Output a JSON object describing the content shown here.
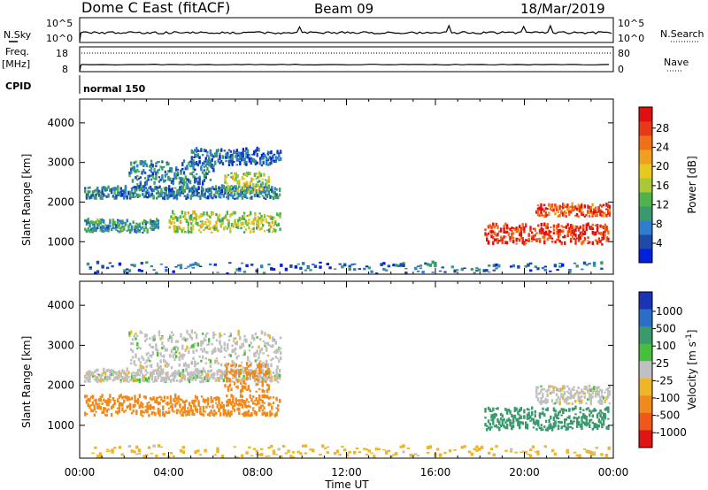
{
  "header": {
    "station": "Dome C East (fitACF)",
    "beam": "Beam 09",
    "date": "18/Mar/2019"
  },
  "top_panels": {
    "nsky": {
      "label": "N.Sky",
      "ticks": [
        "10^5",
        "10^0"
      ],
      "right_ticks": [
        "10^5",
        "10^0"
      ],
      "right_label": "N.Search"
    },
    "freq": {
      "label_line1": "Freq.",
      "label_line2": "[MHz]",
      "ticks": [
        "18",
        "8"
      ],
      "right_ticks": [
        "80",
        "0"
      ],
      "right_label": "Nave"
    },
    "cpid": {
      "label": "CPID",
      "mode": "normal 150"
    }
  },
  "x_axis": {
    "label": "Time UT",
    "ticks": [
      "00:00",
      "04:00",
      "08:00",
      "12:00",
      "16:00",
      "20:00",
      "00:00"
    ]
  },
  "y_axis": {
    "label": "Slant Range [km]",
    "ticks": [
      "1000",
      "2000",
      "3000",
      "4000"
    ]
  },
  "power_colorbar": {
    "label": "Power [dB]",
    "ticks": [
      "4",
      "8",
      "12",
      "16",
      "20",
      "24",
      "28"
    ],
    "colors": [
      "#0020e0",
      "#1e4aa8",
      "#2e7ed0",
      "#3a9a6e",
      "#4cb44a",
      "#a8c838",
      "#e8c81e",
      "#f0a01e",
      "#f07018",
      "#e83818",
      "#e01010"
    ]
  },
  "velocity_colorbar": {
    "label": "Velocity [m s^-1]",
    "ticks": [
      "1000",
      "500",
      "100",
      "25",
      "-25",
      "-100",
      "-500",
      "-1000"
    ],
    "colors": [
      "#1a34b8",
      "#2a6ec8",
      "#3a9a6e",
      "#44c03a",
      "#c0c0c0",
      "#f0b428",
      "#f08a1c",
      "#f05818",
      "#e01414"
    ]
  },
  "chart_data": [
    {
      "type": "heatmap",
      "title": "",
      "quantity": "Power",
      "units": "dB",
      "xlabel": "Time UT",
      "ylabel": "Slant Range [km]",
      "xlim": [
        "00:00",
        "24:00"
      ],
      "ylim": [
        180,
        4600
      ],
      "bands": [
        {
          "t_start": 0.2,
          "t_end": 9.0,
          "range_start": 2050,
          "range_end": 2350,
          "value": 8
        },
        {
          "t_start": 2.2,
          "t_end": 6.0,
          "range_start": 2400,
          "range_end": 3000,
          "value": 8
        },
        {
          "t_start": 5.0,
          "t_end": 9.0,
          "range_start": 2900,
          "range_end": 3300,
          "value": 6
        },
        {
          "t_start": 6.5,
          "t_end": 8.5,
          "range_start": 2200,
          "range_end": 2700,
          "value": 16
        },
        {
          "t_start": 0.2,
          "t_end": 3.5,
          "range_start": 1200,
          "range_end": 1500,
          "value": 10
        },
        {
          "t_start": 4.0,
          "t_end": 9.0,
          "range_start": 1200,
          "range_end": 1700,
          "value": 16
        },
        {
          "t_start": 18.2,
          "t_end": 23.8,
          "range_start": 900,
          "range_end": 1400,
          "value": 28
        },
        {
          "t_start": 20.5,
          "t_end": 23.8,
          "range_start": 1600,
          "range_end": 1900,
          "value": 26
        },
        {
          "t_start": 0.2,
          "t_end": 23.8,
          "range_start": 180,
          "range_end": 450,
          "value": 6
        }
      ]
    },
    {
      "type": "heatmap",
      "title": "",
      "quantity": "Velocity",
      "units": "m s^-1",
      "xlabel": "Time UT",
      "ylabel": "Slant Range [km]",
      "xlim": [
        "00:00",
        "24:00"
      ],
      "ylim": [
        180,
        4600
      ],
      "bands": [
        {
          "t_start": 0.2,
          "t_end": 9.0,
          "range_start": 2050,
          "range_end": 2350,
          "value": 0
        },
        {
          "t_start": 2.2,
          "t_end": 9.0,
          "range_start": 2400,
          "range_end": 3300,
          "value": 0
        },
        {
          "t_start": 6.5,
          "t_end": 8.5,
          "range_start": 1800,
          "range_end": 2500,
          "value": -300
        },
        {
          "t_start": 0.2,
          "t_end": 9.0,
          "range_start": 1200,
          "range_end": 1700,
          "value": -400
        },
        {
          "t_start": 18.2,
          "t_end": 23.8,
          "range_start": 850,
          "range_end": 1400,
          "value": 300
        },
        {
          "t_start": 20.5,
          "t_end": 23.8,
          "range_start": 1500,
          "range_end": 1950,
          "value": 0
        },
        {
          "t_start": 0.2,
          "t_end": 23.8,
          "range_start": 180,
          "range_end": 450,
          "value": -50
        }
      ]
    }
  ]
}
